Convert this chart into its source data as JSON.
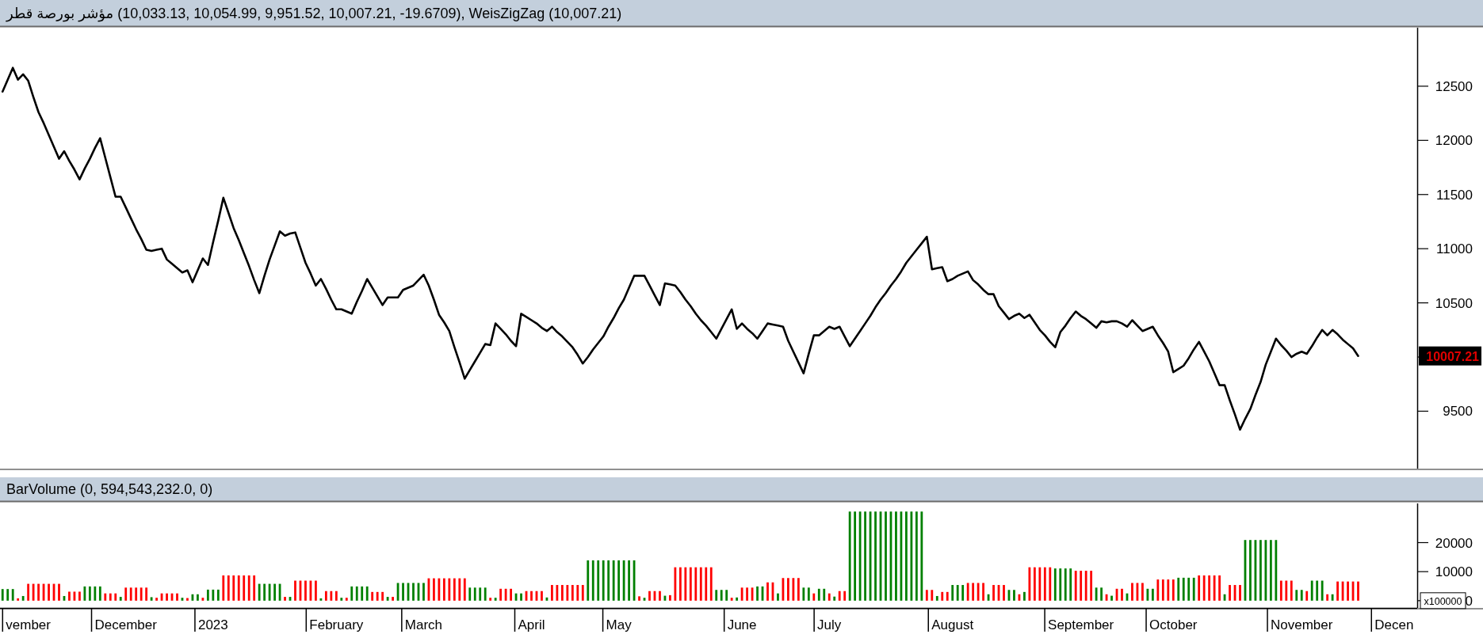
{
  "chart_data": [
    {
      "type": "line",
      "title": "مؤشر بورصة قطر (10,033.13, 10,054.99, 9,951.52, 10,007.21, -19.6709), WeisZigZag (10,007.21)",
      "ylim": [
        8970,
        13040
      ],
      "yticks": [
        9500,
        {
          "value": 10000,
          "label": null
        },
        10500,
        11000,
        11500,
        12000,
        12500
      ],
      "categories": [
        null,
        null,
        null,
        null,
        null,
        null,
        null,
        null,
        null,
        null,
        null,
        null,
        null,
        null,
        null,
        null,
        null,
        null,
        null,
        null,
        null,
        null,
        null,
        null,
        null,
        null,
        null,
        null,
        null,
        null,
        null,
        null,
        null,
        null,
        null,
        null,
        null,
        null,
        null,
        null,
        null,
        null,
        null,
        null,
        null,
        null,
        null,
        null,
        null,
        null,
        null,
        null,
        null,
        null,
        null,
        null,
        null,
        null,
        null,
        null,
        null,
        null,
        null,
        null,
        null,
        null,
        null,
        null,
        null,
        null,
        null,
        null,
        null,
        null,
        null,
        null,
        null,
        null,
        null,
        null,
        null,
        null,
        null,
        null,
        null,
        null,
        null,
        null,
        null,
        null,
        null,
        null,
        null,
        null,
        null,
        null,
        null,
        null,
        null,
        null,
        null,
        null,
        null,
        null,
        null,
        null,
        null,
        null,
        null,
        null,
        null,
        null,
        null,
        null,
        null,
        null,
        null,
        null,
        null,
        null,
        null,
        null,
        null,
        null,
        null,
        null,
        null,
        null,
        null,
        null,
        null,
        null,
        null,
        null,
        null,
        null,
        null,
        null,
        null,
        null,
        null,
        null,
        null,
        null,
        null,
        null,
        null,
        null,
        null,
        null,
        null,
        null,
        null,
        null,
        null,
        null,
        null,
        null,
        null,
        null,
        null,
        null,
        null,
        null,
        null,
        null,
        null,
        null,
        null,
        null,
        null,
        null,
        null,
        null,
        null,
        null,
        null,
        null,
        null,
        null,
        null,
        null,
        null,
        null,
        null,
        null,
        null,
        null,
        null,
        null,
        null,
        null,
        null,
        null,
        null,
        null,
        null,
        null,
        null,
        null,
        null,
        null,
        null,
        null,
        null,
        null,
        null,
        null,
        null,
        null,
        null,
        null,
        null,
        null,
        null,
        null,
        null,
        null,
        null,
        null,
        null,
        null,
        null,
        null,
        null,
        null,
        null,
        null,
        null,
        null,
        null,
        null,
        null,
        null,
        null,
        null,
        null,
        null,
        null,
        null,
        null,
        null,
        null,
        null,
        null,
        null,
        null,
        null,
        null,
        null,
        null,
        null,
        null,
        null,
        null,
        null,
        null,
        null,
        null,
        null,
        null,
        null,
        null,
        null,
        null,
        null,
        null,
        null,
        null,
        null,
        null,
        null,
        null,
        null,
        null,
        null
      ],
      "series": [
        {
          "color": "#000000",
          "values": [
            12450,
            12560,
            12670,
            12560,
            12610,
            12550,
            12400,
            12260,
            12160,
            12050,
            11940,
            11830,
            11900,
            11810,
            11730,
            11640,
            11740,
            11830,
            11930,
            12020,
            11840,
            11660,
            11480,
            11480,
            11380,
            11280,
            11180,
            11090,
            10990,
            10980,
            10990,
            11000,
            10900,
            10860,
            10820,
            10780,
            10800,
            10690,
            10800,
            10910,
            10850,
            11060,
            11260,
            11470,
            11330,
            11190,
            11080,
            10960,
            10840,
            10710,
            10590,
            10750,
            10900,
            11030,
            11160,
            11120,
            11140,
            11150,
            11010,
            10870,
            10770,
            10660,
            10720,
            10630,
            10530,
            10440,
            10440,
            10420,
            10400,
            10510,
            10610,
            10720,
            10640,
            10560,
            10480,
            10550,
            10550,
            10550,
            10620,
            10640,
            10660,
            10710,
            10760,
            10660,
            10530,
            10390,
            10320,
            10240,
            10090,
            9950,
            9800,
            9880,
            9960,
            10040,
            10120,
            10110,
            10310,
            10260,
            10210,
            10150,
            10100,
            10400,
            10370,
            10340,
            10310,
            10270,
            10240,
            10280,
            10230,
            10190,
            10140,
            10090,
            10020,
            9940,
            10000,
            10070,
            10130,
            10190,
            10280,
            10360,
            10450,
            10530,
            10640,
            10750,
            10750,
            10750,
            10660,
            10570,
            10480,
            10680,
            10670,
            10660,
            10600,
            10530,
            10470,
            10400,
            10340,
            10290,
            10230,
            10170,
            10260,
            10350,
            10440,
            10260,
            10310,
            10260,
            10220,
            10170,
            10240,
            10310,
            10300,
            10290,
            10280,
            10150,
            10050,
            9950,
            9850,
            10030,
            10200,
            10200,
            10240,
            10280,
            10260,
            10280,
            10190,
            10100,
            10170,
            10240,
            10310,
            10380,
            10460,
            10530,
            10590,
            10660,
            10720,
            10790,
            10870,
            10930,
            10990,
            11050,
            11110,
            10810,
            10820,
            10830,
            10700,
            10720,
            10750,
            10770,
            10790,
            10710,
            10670,
            10620,
            10580,
            10580,
            10470,
            10410,
            10350,
            10380,
            10400,
            10360,
            10390,
            10320,
            10250,
            10200,
            10140,
            10090,
            10230,
            10290,
            10360,
            10420,
            10380,
            10350,
            10310,
            10270,
            10330,
            10320,
            10330,
            10330,
            10310,
            10280,
            10340,
            10290,
            10240,
            10260,
            10280,
            10200,
            10130,
            10050,
            9860,
            9890,
            9920,
            9990,
            10070,
            10140,
            10050,
            9960,
            9850,
            9740,
            9740,
            9600,
            9470,
            9330,
            9430,
            9520,
            9650,
            9770,
            9930,
            10050,
            10170,
            10110,
            10060,
            10000,
            10030,
            10050,
            10030,
            10100,
            10180,
            10250,
            10200,
            10250,
            10210,
            10160,
            10120,
            10080,
            10010,
            null,
            null,
            null,
            null,
            null,
            null,
            null,
            null,
            null,
            null,
            null
          ]
        }
      ],
      "annotations": [
        "10007.21"
      ]
    },
    {
      "type": "bar",
      "title": "BarVolume (0, 594,543,232.0, 0)",
      "ylim": [
        -2500,
        33500
      ],
      "yticks": [
        0,
        10000,
        20000
      ],
      "categories": [
        null,
        null,
        null,
        null,
        null,
        "vember",
        null,
        null,
        null,
        null,
        null,
        null,
        null,
        null,
        null,
        null,
        null,
        null,
        null,
        null,
        null,
        null,
        null,
        null,
        "December",
        null,
        null,
        null,
        null,
        null,
        null,
        null,
        null,
        null,
        null,
        null,
        null,
        null,
        null,
        null,
        null,
        "2023",
        null,
        null,
        null,
        null,
        null,
        null,
        null,
        null,
        null,
        null,
        null,
        null,
        null,
        null,
        null,
        null,
        null,
        null,
        null,
        null,
        null,
        null,
        null,
        "February",
        null,
        null,
        null,
        null,
        null,
        null,
        null,
        null,
        null,
        null,
        null,
        null,
        null,
        null,
        null,
        null,
        "March",
        null,
        null,
        null,
        null,
        null,
        null,
        null,
        null,
        null,
        null,
        null,
        null,
        null,
        null,
        null,
        null,
        null,
        null,
        null,
        null,
        "April",
        null,
        null,
        null,
        null,
        null,
        null,
        null,
        null,
        null,
        null,
        null,
        null,
        null,
        null,
        null,
        null,
        "May",
        null,
        null,
        null,
        null,
        null,
        null,
        null,
        null,
        null,
        null,
        null,
        null,
        null,
        null,
        null,
        null,
        null,
        null,
        null,
        null,
        null,
        null,
        null,
        "June",
        null,
        null,
        null,
        null,
        null,
        null,
        null,
        null,
        null,
        null,
        null,
        null,
        null,
        null,
        null,
        null,
        "July",
        null,
        null,
        null,
        null,
        null,
        null,
        null,
        null,
        null,
        null,
        null,
        null,
        null,
        null,
        null,
        null,
        null,
        null,
        null,
        null,
        null,
        null,
        null,
        "August",
        null,
        null,
        null,
        null,
        null,
        null,
        null,
        null,
        null,
        null,
        null,
        null,
        null,
        null,
        null,
        null,
        null,
        null,
        null,
        null,
        null,
        null,
        null,
        null,
        "September",
        null,
        null,
        null,
        null,
        null,
        null,
        null,
        null,
        null,
        null,
        null,
        null,
        null,
        null,
        null,
        null,
        null,
        "October",
        null,
        null,
        null,
        null,
        null,
        null,
        null,
        null,
        null,
        null,
        null,
        null,
        null,
        null,
        null,
        null,
        null,
        null,
        null,
        null,
        null,
        null,
        null,
        null,
        "November",
        null,
        null,
        null,
        null,
        null,
        null,
        null,
        null,
        null,
        null,
        null,
        null,
        null,
        null,
        null,
        null,
        null,
        "Decen",
        null,
        null,
        null,
        null
      ],
      "values": [
        4000,
        4000,
        4000,
        800,
        1600,
        5800,
        5800,
        5800,
        5800,
        5800,
        5800,
        5800,
        1600,
        3100,
        3100,
        3100,
        4900,
        4900,
        4900,
        4900,
        2500,
        2500,
        2500,
        1300,
        4500,
        4500,
        4500,
        4500,
        4500,
        1200,
        1000,
        2500,
        2500,
        2500,
        2500,
        1000,
        900,
        2200,
        2200,
        1000,
        3800,
        3800,
        3800,
        8700,
        8700,
        8700,
        8700,
        8700,
        8700,
        8700,
        5800,
        5800,
        5800,
        5800,
        5800,
        1300,
        1300,
        6900,
        6900,
        6900,
        6900,
        6900,
        800,
        3300,
        3300,
        3300,
        1000,
        1000,
        4900,
        4900,
        4900,
        4900,
        3000,
        3000,
        3000,
        1300,
        1300,
        6100,
        6100,
        6100,
        6100,
        6100,
        6100,
        7700,
        7700,
        7700,
        7700,
        7700,
        7700,
        7700,
        7700,
        4500,
        4500,
        4500,
        4500,
        1000,
        1000,
        4100,
        4100,
        4100,
        2500,
        2500,
        3300,
        3300,
        3300,
        3300,
        1100,
        5400,
        5400,
        5400,
        5400,
        5400,
        5400,
        5400,
        13900,
        13900,
        13900,
        13900,
        13900,
        13900,
        13900,
        13900,
        13900,
        13900,
        1500,
        1000,
        3300,
        3300,
        3300,
        1700,
        1900,
        11500,
        11500,
        11500,
        11500,
        11500,
        11500,
        11500,
        11500,
        3700,
        3700,
        3700,
        1000,
        1100,
        4500,
        4500,
        4500,
        4900,
        4900,
        6300,
        6300,
        2500,
        7800,
        7800,
        7800,
        7800,
        4500,
        4500,
        2500,
        4100,
        4100,
        2500,
        1400,
        3300,
        3300,
        30700,
        30700,
        30700,
        30700,
        30700,
        30700,
        30700,
        30700,
        30700,
        30700,
        30700,
        30700,
        30700,
        30700,
        30700,
        3700,
        3700,
        1600,
        3000,
        3000,
        5400,
        5400,
        5400,
        6100,
        6100,
        6100,
        6100,
        2200,
        5400,
        5400,
        5400,
        3700,
        3700,
        2200,
        3000,
        11500,
        11500,
        11500,
        11500,
        11500,
        11100,
        11100,
        11100,
        11100,
        10300,
        10300,
        10300,
        10300,
        4500,
        4500,
        2200,
        1700,
        4100,
        4100,
        2500,
        6100,
        6100,
        6100,
        4100,
        4100,
        7300,
        7300,
        7300,
        7300,
        7900,
        7900,
        7900,
        7900,
        8700,
        8700,
        8700,
        8700,
        8700,
        2200,
        5400,
        5400,
        5400,
        20900,
        20900,
        20900,
        20900,
        20900,
        20900,
        20900,
        6900,
        6900,
        6900,
        3700,
        3700,
        3300,
        6900,
        6900,
        6900,
        2200,
        2200,
        6600,
        6600,
        6600,
        6600,
        6600,
        null,
        null,
        null,
        null,
        null,
        null,
        null,
        null,
        null,
        null,
        null
      ],
      "colors": [
        "#008000",
        "#008000",
        "#008000",
        "#ff0000",
        "#008000",
        "#ff0000",
        "#ff0000",
        "#ff0000",
        "#ff0000",
        "#ff0000",
        "#ff0000",
        "#ff0000",
        "#008000",
        "#ff0000",
        "#ff0000",
        "#ff0000",
        "#008000",
        "#008000",
        "#008000",
        "#008000",
        "#ff0000",
        "#ff0000",
        "#ff0000",
        "#008000",
        "#ff0000",
        "#ff0000",
        "#ff0000",
        "#ff0000",
        "#ff0000",
        "#008000",
        "#ff0000",
        "#ff0000",
        "#ff0000",
        "#ff0000",
        "#ff0000",
        "#008000",
        "#ff0000",
        "#008000",
        "#008000",
        "#ff0000",
        "#008000",
        "#008000",
        "#008000",
        "#ff0000",
        "#ff0000",
        "#ff0000",
        "#ff0000",
        "#ff0000",
        "#ff0000",
        "#ff0000",
        "#008000",
        "#008000",
        "#008000",
        "#008000",
        "#008000",
        "#ff0000",
        "#008000",
        "#ff0000",
        "#ff0000",
        "#ff0000",
        "#ff0000",
        "#ff0000",
        "#008000",
        "#ff0000",
        "#ff0000",
        "#ff0000",
        "#008000",
        "#ff0000",
        "#008000",
        "#008000",
        "#008000",
        "#008000",
        "#ff0000",
        "#ff0000",
        "#ff0000",
        "#008000",
        "#ff0000",
        "#008000",
        "#008000",
        "#008000",
        "#008000",
        "#008000",
        "#008000",
        "#ff0000",
        "#ff0000",
        "#ff0000",
        "#ff0000",
        "#ff0000",
        "#ff0000",
        "#ff0000",
        "#ff0000",
        "#008000",
        "#008000",
        "#008000",
        "#008000",
        "#ff0000",
        "#008000",
        "#ff0000",
        "#ff0000",
        "#ff0000",
        "#008000",
        "#008000",
        "#ff0000",
        "#ff0000",
        "#ff0000",
        "#ff0000",
        "#008000",
        "#ff0000",
        "#ff0000",
        "#ff0000",
        "#ff0000",
        "#ff0000",
        "#ff0000",
        "#ff0000",
        "#008000",
        "#008000",
        "#008000",
        "#008000",
        "#008000",
        "#008000",
        "#008000",
        "#008000",
        "#008000",
        "#008000",
        "#ff0000",
        "#008000",
        "#ff0000",
        "#ff0000",
        "#ff0000",
        "#008000",
        "#ff0000",
        "#ff0000",
        "#ff0000",
        "#ff0000",
        "#ff0000",
        "#ff0000",
        "#ff0000",
        "#ff0000",
        "#ff0000",
        "#008000",
        "#008000",
        "#008000",
        "#ff0000",
        "#008000",
        "#ff0000",
        "#ff0000",
        "#ff0000",
        "#008000",
        "#008000",
        "#ff0000",
        "#ff0000",
        "#008000",
        "#ff0000",
        "#ff0000",
        "#ff0000",
        "#ff0000",
        "#008000",
        "#008000",
        "#ff0000",
        "#008000",
        "#008000",
        "#ff0000",
        "#008000",
        "#ff0000",
        "#ff0000",
        "#008000",
        "#008000",
        "#008000",
        "#008000",
        "#008000",
        "#008000",
        "#008000",
        "#008000",
        "#008000",
        "#008000",
        "#008000",
        "#008000",
        "#008000",
        "#008000",
        "#008000",
        "#ff0000",
        "#ff0000",
        "#008000",
        "#ff0000",
        "#ff0000",
        "#008000",
        "#008000",
        "#008000",
        "#ff0000",
        "#ff0000",
        "#ff0000",
        "#ff0000",
        "#008000",
        "#ff0000",
        "#ff0000",
        "#ff0000",
        "#008000",
        "#008000",
        "#ff0000",
        "#008000",
        "#ff0000",
        "#ff0000",
        "#ff0000",
        "#ff0000",
        "#ff0000",
        "#008000",
        "#008000",
        "#008000",
        "#008000",
        "#ff0000",
        "#ff0000",
        "#ff0000",
        "#ff0000",
        "#008000",
        "#008000",
        "#ff0000",
        "#008000",
        "#ff0000",
        "#ff0000",
        "#008000",
        "#ff0000",
        "#ff0000",
        "#ff0000",
        "#008000",
        "#008000",
        "#ff0000",
        "#ff0000",
        "#ff0000",
        "#ff0000",
        "#008000",
        "#008000",
        "#008000",
        "#008000",
        "#ff0000",
        "#ff0000",
        "#ff0000",
        "#ff0000",
        "#ff0000",
        "#008000",
        "#ff0000",
        "#ff0000",
        "#ff0000",
        "#008000",
        "#008000",
        "#008000",
        "#008000",
        "#008000",
        "#008000",
        "#008000",
        "#ff0000",
        "#ff0000",
        "#ff0000",
        "#008000",
        "#008000",
        "#ff0000",
        "#008000",
        "#008000",
        "#008000",
        "#ff0000",
        "#008000",
        "#ff0000",
        "#ff0000",
        "#ff0000",
        "#ff0000",
        "#ff0000",
        null,
        null,
        null,
        null,
        null,
        null,
        null,
        null,
        null,
        null,
        null
      ],
      "annotations": [
        "x100000"
      ]
    }
  ]
}
